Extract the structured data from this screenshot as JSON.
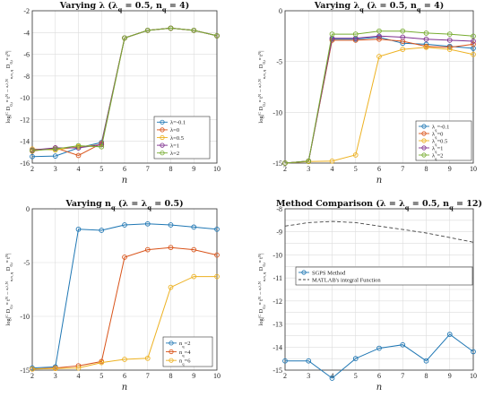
{
  "chart_data": [
    {
      "type": "line",
      "title": "Varying λ (λ_q = 0.5, n_q = 4)",
      "xlabel": "n",
      "ylabel": "log|^C D_{0,t}^{α} t^N − ^{a,λ,N}_{n,n_q} D_{0,t}^{α} t^N|",
      "x": [
        2,
        3,
        4,
        5,
        6,
        7,
        8,
        9,
        10
      ],
      "xlim": [
        2,
        10
      ],
      "ylim": [
        -16,
        -2
      ],
      "yticks": [
        -16,
        -14,
        -12,
        -10,
        -8,
        -6,
        -4,
        -2
      ],
      "xticks": [
        2,
        3,
        4,
        5,
        6,
        7,
        8,
        9,
        10
      ],
      "legend_position": "lower-right",
      "series": [
        {
          "name": "λ=-0.1",
          "color": "#1f77b4",
          "values": [
            -15.4,
            -15.35,
            -14.6,
            -14.1,
            -4.5,
            -3.8,
            -3.6,
            -3.8,
            -4.3
          ]
        },
        {
          "name": "λ=0",
          "color": "#d95319",
          "values": [
            -14.9,
            -14.6,
            -15.3,
            -14.2,
            -4.5,
            -3.8,
            -3.6,
            -3.8,
            -4.3
          ]
        },
        {
          "name": "λ=0.5",
          "color": "#edb120",
          "values": [
            -14.7,
            -14.8,
            -14.5,
            -14.3,
            -4.5,
            -3.8,
            -3.6,
            -3.8,
            -4.3
          ]
        },
        {
          "name": "λ=1",
          "color": "#7e2f8e",
          "values": [
            -14.8,
            -14.6,
            -14.6,
            -14.3,
            -4.5,
            -3.8,
            -3.6,
            -3.8,
            -4.3
          ]
        },
        {
          "name": "λ=2",
          "color": "#77ac30",
          "values": [
            -14.85,
            -14.7,
            -14.4,
            -14.5,
            -4.5,
            -3.8,
            -3.6,
            -3.8,
            -4.3
          ]
        }
      ]
    },
    {
      "type": "line",
      "title": "Varying λ_q (λ = 0.5, n_q = 4)",
      "xlabel": "n",
      "ylabel": "log|^C D_{0,t}^{α} t^N − ^{a,λ,N}_{n,n_q} D_{0,t}^{α} t^N|",
      "x": [
        2,
        3,
        4,
        5,
        6,
        7,
        8,
        9,
        10
      ],
      "xlim": [
        2,
        10
      ],
      "ylim": [
        -15,
        0
      ],
      "yticks": [
        -15,
        -10,
        -5,
        0
      ],
      "xticks": [
        2,
        3,
        4,
        5,
        6,
        7,
        8,
        9,
        10
      ],
      "legend_position": "lower-right",
      "series": [
        {
          "name": "λ_q=-0.1",
          "color": "#1f77b4",
          "values": [
            -15,
            -14.8,
            -2.8,
            -2.8,
            -2.6,
            -3.2,
            -3.3,
            -3.5,
            -3.7
          ]
        },
        {
          "name": "λ_q=0",
          "color": "#d95319",
          "values": [
            -15,
            -14.8,
            -2.9,
            -2.9,
            -2.8,
            -3.0,
            -3.5,
            -3.6,
            -3.3
          ]
        },
        {
          "name": "λ_q=0.5",
          "color": "#edb120",
          "values": [
            -15,
            -14.85,
            -14.8,
            -14.2,
            -4.5,
            -3.8,
            -3.6,
            -3.8,
            -4.3
          ]
        },
        {
          "name": "λ_q=1",
          "color": "#7e2f8e",
          "values": [
            -15,
            -14.8,
            -2.7,
            -2.7,
            -2.5,
            -2.6,
            -2.8,
            -2.9,
            -3.0
          ]
        },
        {
          "name": "λ_q=2",
          "color": "#77ac30",
          "values": [
            -15,
            -14.8,
            -2.3,
            -2.3,
            -2.0,
            -2.0,
            -2.2,
            -2.3,
            -2.5
          ]
        }
      ]
    },
    {
      "type": "line",
      "title": "Varying n_q (λ = λ_q = 0.5)",
      "xlabel": "n",
      "ylabel": "log|^C D_{0,t}^{α} t^N − ^{a,λ,N}_{n,n_q} D_{0,t}^{α} t^N|",
      "x": [
        2,
        3,
        4,
        5,
        6,
        7,
        8,
        9,
        10
      ],
      "xlim": [
        2,
        10
      ],
      "ylim": [
        -15,
        0
      ],
      "yticks": [
        -15,
        -10,
        -5,
        0
      ],
      "xticks": [
        2,
        3,
        4,
        5,
        6,
        7,
        8,
        9,
        10
      ],
      "legend_position": "lower-right",
      "series": [
        {
          "name": "n_q=2",
          "color": "#1f77b4",
          "values": [
            -14.8,
            -14.7,
            -1.9,
            -2.0,
            -1.5,
            -1.4,
            -1.5,
            -1.7,
            -1.9
          ]
        },
        {
          "name": "n_q=4",
          "color": "#d95319",
          "values": [
            -14.9,
            -14.8,
            -14.6,
            -14.2,
            -4.5,
            -3.8,
            -3.6,
            -3.8,
            -4.3
          ]
        },
        {
          "name": "n_q=6",
          "color": "#edb120",
          "values": [
            -14.9,
            -14.85,
            -14.8,
            -14.3,
            -14.0,
            -13.9,
            -7.3,
            -6.3,
            -6.3
          ]
        }
      ]
    },
    {
      "type": "line",
      "title": "Method Comparison (λ = λ_q = 0.5, n_q = 12)",
      "xlabel": "n",
      "ylabel": "log|^C D_{0,t}^{α} t^N − ^{a,λ,N}_{n,n_q} D_{0,t}^{α} t^N|",
      "x": [
        2,
        3,
        4,
        5,
        6,
        7,
        8,
        9,
        10
      ],
      "xlim": [
        2,
        10
      ],
      "ylim": [
        -15,
        -8
      ],
      "yticks": [
        -15,
        -14.5,
        -14,
        -13.5,
        -13,
        -12.5,
        -12,
        -11.5,
        -11,
        -10.5,
        -10,
        -9.5,
        -9,
        -8.5,
        -8
      ],
      "ytick_labels": [
        "-15",
        "",
        "-14",
        "",
        "-13",
        "",
        "-12",
        "",
        "-11",
        "",
        "-10",
        "",
        "-9",
        "",
        "-8"
      ],
      "xticks": [
        2,
        3,
        4,
        5,
        6,
        7,
        8,
        9,
        10
      ],
      "legend_position": "center-right",
      "series": [
        {
          "name": "SGPS Method",
          "color": "#1f77b4",
          "style": "solid-marker",
          "values": [
            -14.6,
            -14.6,
            -15.35,
            -14.5,
            -14.05,
            -13.9,
            -14.6,
            -13.45,
            -14.2
          ]
        },
        {
          "name": "MATLAB's integral Function",
          "color": "#444444",
          "style": "dashed",
          "values": [
            -8.75,
            -8.6,
            -8.55,
            -8.6,
            -8.75,
            -8.9,
            -9.05,
            -9.25,
            -9.45
          ]
        }
      ]
    }
  ]
}
